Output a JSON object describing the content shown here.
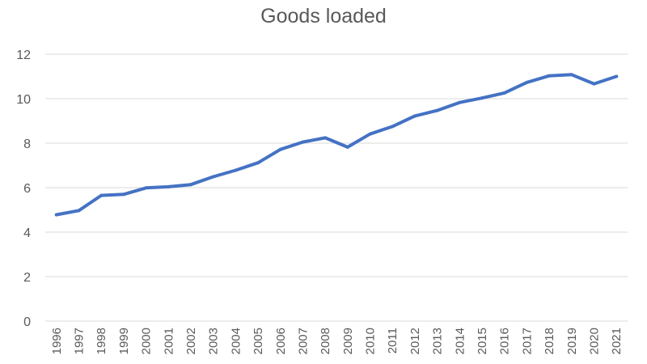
{
  "chart_data": {
    "type": "line",
    "title": "Goods loaded",
    "xlabel": "",
    "ylabel": "",
    "ylim": [
      0,
      12
    ],
    "yticks": [
      "0",
      "2",
      "4",
      "6",
      "8",
      "10",
      "12"
    ],
    "grid": true,
    "legend": "none",
    "x": [
      "1996",
      "1997",
      "1998",
      "1999",
      "2000",
      "2001",
      "2002",
      "2003",
      "2004",
      "2005",
      "2006",
      "2007",
      "2008",
      "2009",
      "2010",
      "2011",
      "2012",
      "2013",
      "2014",
      "2015",
      "2016",
      "2017",
      "2018",
      "2019",
      "2020",
      "2021"
    ],
    "series": [
      {
        "color": "#4472c4",
        "values": [
          4.78,
          4.97,
          5.65,
          5.7,
          5.99,
          6.04,
          6.14,
          6.49,
          6.78,
          7.12,
          7.72,
          8.05,
          8.24,
          7.82,
          8.41,
          8.75,
          9.22,
          9.47,
          9.83,
          10.03,
          10.26,
          10.73,
          11.03,
          11.08,
          10.67,
          11.0
        ]
      }
    ]
  }
}
